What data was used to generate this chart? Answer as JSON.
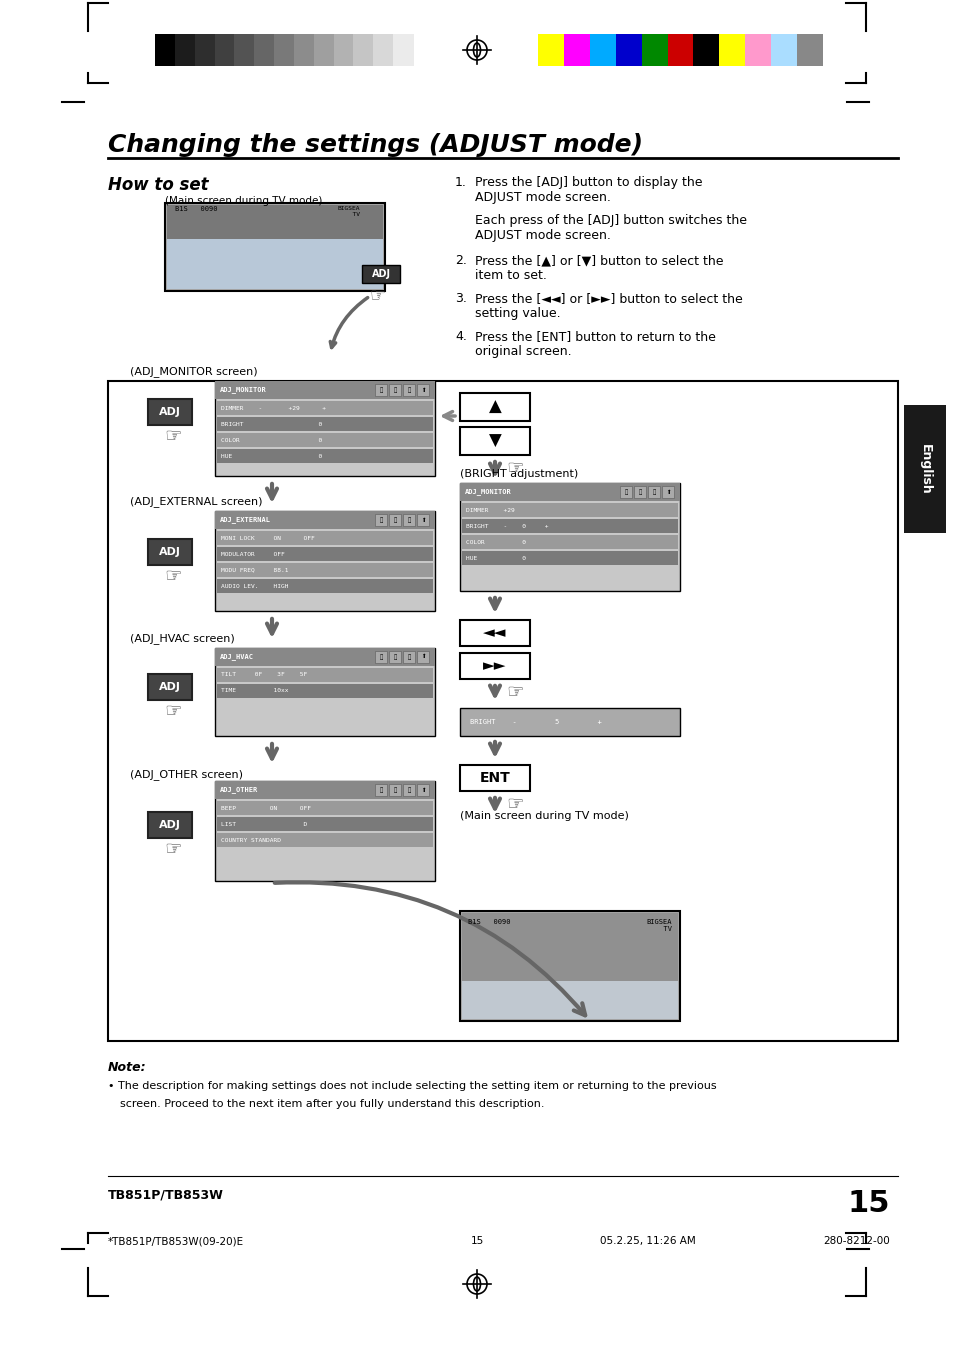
{
  "title": "Changing the settings (ADJUST mode)",
  "subtitle": "How to set",
  "bg_color": "#ffffff",
  "page_number": "15",
  "model": "TB851P/TB853W",
  "footer_left": "*TB851P/TB853W(09-20)E",
  "footer_mid": "15",
  "footer_date": "05.2.25, 11:26 AM",
  "footer_code": "280-8212-00",
  "color_bar_grayscale": [
    "#000000",
    "#1c1c1c",
    "#2e2e2e",
    "#404040",
    "#535353",
    "#666666",
    "#797979",
    "#8c8c8c",
    "#9f9f9f",
    "#b2b2b2",
    "#c5c5c5",
    "#d8d8d8",
    "#ebebeb"
  ],
  "color_bar_colors": [
    "#ffff00",
    "#ff00ff",
    "#00aaff",
    "#0000cc",
    "#008800",
    "#cc0000",
    "#000000",
    "#ffff00",
    "#ff99cc",
    "#aaddff",
    "#888888"
  ],
  "screen_bg": "#3a3a3a",
  "screen_header_bg": "#5a5a5a",
  "screen_row1_bg": "#8a8a8a",
  "screen_row2_bg": "#6a6a6a",
  "screen_text": "#ffffff",
  "adj_btn_bg": "#444444",
  "adj_btn_text": "#ffffff"
}
